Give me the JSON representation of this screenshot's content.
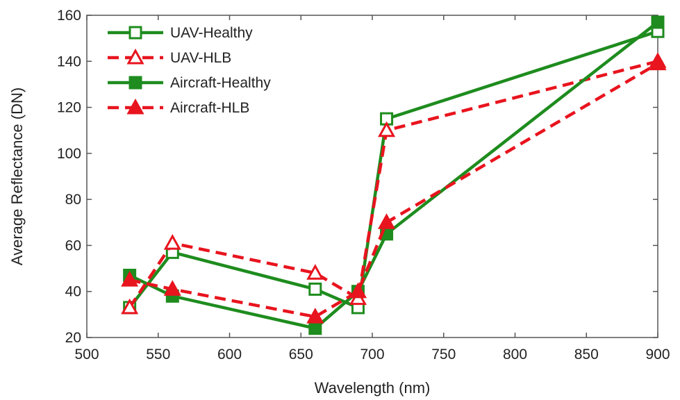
{
  "chart_data": {
    "type": "line",
    "title": "",
    "xlabel": "Wavelength (nm)",
    "ylabel": "Average Reflectance (DN)",
    "xlim": [
      500,
      900
    ],
    "ylim": [
      20,
      160
    ],
    "xticks": [
      500,
      550,
      600,
      650,
      700,
      750,
      800,
      850,
      900
    ],
    "yticks": [
      20,
      40,
      60,
      80,
      100,
      120,
      140,
      160
    ],
    "grid": false,
    "legend_position": "top-left",
    "series": [
      {
        "name": "UAV-Healthy",
        "color": "#1e8c1e",
        "dash": "solid",
        "marker": "square-open",
        "x": [
          530,
          560,
          660,
          690,
          710,
          900
        ],
        "y": [
          33,
          57,
          41,
          33,
          115,
          153
        ]
      },
      {
        "name": "UAV-HLB",
        "color": "#e8141e",
        "dash": "dashed",
        "marker": "triangle-open",
        "x": [
          530,
          560,
          660,
          690,
          710,
          900
        ],
        "y": [
          33,
          61,
          48,
          37,
          110,
          140
        ]
      },
      {
        "name": "Aircraft-Healthy",
        "color": "#1e8c1e",
        "dash": "solid",
        "marker": "square-filled",
        "x": [
          530,
          560,
          660,
          690,
          710,
          900
        ],
        "y": [
          47,
          38,
          24,
          40,
          65,
          157
        ]
      },
      {
        "name": "Aircraft-HLB",
        "color": "#e8141e",
        "dash": "dashed",
        "marker": "triangle-filled",
        "x": [
          530,
          560,
          660,
          690,
          710,
          900
        ],
        "y": [
          45,
          41,
          29,
          40,
          70,
          139
        ]
      }
    ]
  }
}
